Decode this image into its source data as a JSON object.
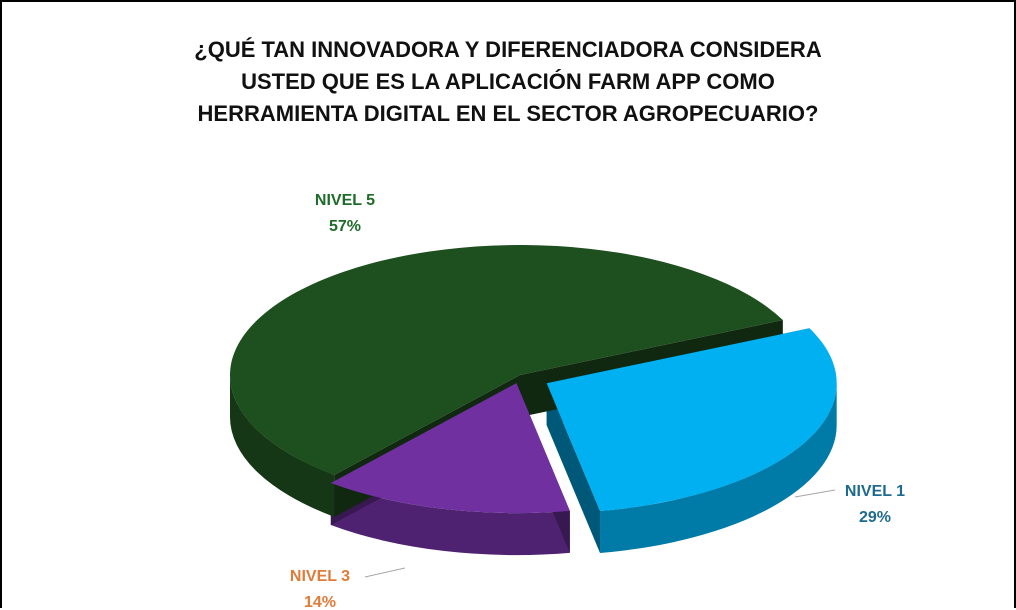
{
  "chart_data": {
    "type": "pie",
    "title": "¿QUÉ TAN INNOVADORA Y DIFERENCIADORA CONSIDERA\nUSTED QUE ES LA APLICACIÓN FARM APP COMO\nHERRAMIENTA DIGITAL EN EL SECTOR AGROPECUARIO?",
    "categories": [
      "NIVEL 1",
      "NIVEL 3",
      "NIVEL 5"
    ],
    "values": [
      29,
      14,
      57
    ],
    "value_labels": [
      "29%",
      "14%",
      "57%"
    ],
    "colors": [
      "#00b0f0",
      "#7030a0",
      "#1e4f1e"
    ],
    "label_colors": [
      "#1f6b8f",
      "#e07b39",
      "#1e6b2a"
    ]
  }
}
